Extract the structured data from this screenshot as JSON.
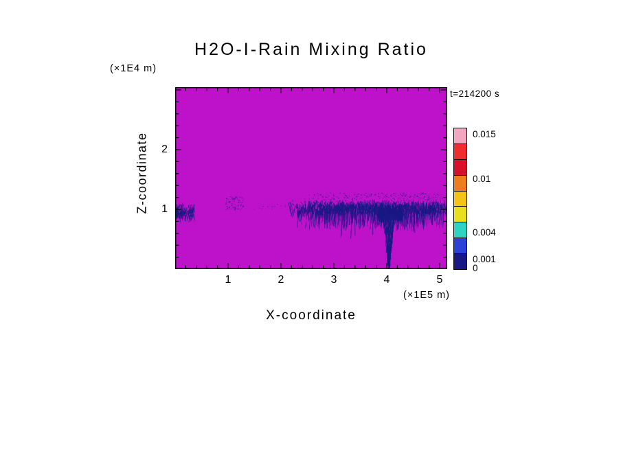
{
  "chart_data": {
    "type": "heatmap",
    "title": "H2O-I-Rain Mixing Ratio",
    "time_annotation": "t=214200 s",
    "xlabel": "X-coordinate",
    "x_units": "(×1E5 m)",
    "ylabel": "Z-coordinate",
    "y_units": "(×1E4 m)",
    "xlim": [
      0,
      5.14
    ],
    "zlim": [
      0,
      3.05
    ],
    "grid": false,
    "minor_tick_interval": 0.2,
    "x_ticks": [
      {
        "value": 1,
        "label": "1"
      },
      {
        "value": 2,
        "label": "2"
      },
      {
        "value": 3,
        "label": "3"
      },
      {
        "value": 4,
        "label": "4"
      },
      {
        "value": 5,
        "label": "5"
      }
    ],
    "z_ticks": [
      {
        "value": 2,
        "label": "2"
      },
      {
        "value": 1,
        "label": "1"
      }
    ],
    "background_value_color": "#bd12c9",
    "feature_color": "#191985",
    "colorbar": {
      "position": "right",
      "scale_max": 0.0158,
      "ticks": [
        {
          "label": "0.015",
          "value": 0.015
        },
        {
          "label": "0.01",
          "value": 0.01
        },
        {
          "label": "0.004",
          "value": 0.004
        },
        {
          "label": "0.001",
          "value": 0.001
        },
        {
          "label": "0",
          "value": 0
        }
      ],
      "segments_top_to_bottom": [
        "#f2a6c0",
        "#ee2e2e",
        "#d8102a",
        "#ef7d1b",
        "#f4c318",
        "#e9df20",
        "#2fd3c4",
        "#2b42d8",
        "#191985"
      ]
    },
    "features": [
      {
        "name": "left-edge-rain-band",
        "type": "band",
        "x_range": [
          0.0,
          0.36
        ],
        "z_range": [
          0.84,
          1.12
        ],
        "count": 180,
        "seg_len": [
          2,
          8
        ],
        "slant": [
          -2.5,
          1
        ]
      },
      {
        "name": "small-cloud-wisp",
        "type": "dots",
        "x_range": [
          0.95,
          1.28
        ],
        "z_range": [
          1.0,
          1.22
        ],
        "count": 70
      },
      {
        "name": "sparse-specks",
        "type": "dots",
        "x_range": [
          1.45,
          2.1
        ],
        "z_range": [
          0.98,
          1.1
        ],
        "count": 12
      },
      {
        "name": "anvil-core",
        "type": "band",
        "x_range": [
          2.15,
          5.13
        ],
        "z_range": [
          0.93,
          1.17
        ],
        "count": 1700,
        "seg_len": [
          2,
          8
        ],
        "slant": [
          -2,
          2
        ],
        "taper_left": 0.28,
        "taper_right": 0.1
      },
      {
        "name": "anvil-top-fuzz",
        "type": "dots",
        "x_range": [
          2.4,
          5.05
        ],
        "z_range": [
          1.14,
          1.28
        ],
        "count": 260,
        "taper_left": 0.25,
        "taper_right": 0.12
      },
      {
        "name": "hanging-rain-streaks",
        "type": "streaks",
        "x_range": [
          2.3,
          5.08
        ],
        "z_top": 0.97,
        "drop_range": [
          0.04,
          0.28
        ],
        "long_zone": [
          3.15,
          4.55
        ],
        "extra_drop": 0.16,
        "count": 430
      },
      {
        "name": "plume-head",
        "type": "band",
        "x_range": [
          3.84,
          4.3
        ],
        "z_range": [
          0.82,
          1.08
        ],
        "count": 650,
        "seg_len": [
          2,
          7
        ],
        "slant": [
          -1.5,
          1.5
        ]
      },
      {
        "name": "downdraft-plume",
        "type": "plume",
        "x_center": 4.04,
        "top_halfwidth": 0.11,
        "bottom_halfwidth": 0.015,
        "z_top": 0.9,
        "z_bottom": 0.1,
        "count": 340
      }
    ]
  }
}
